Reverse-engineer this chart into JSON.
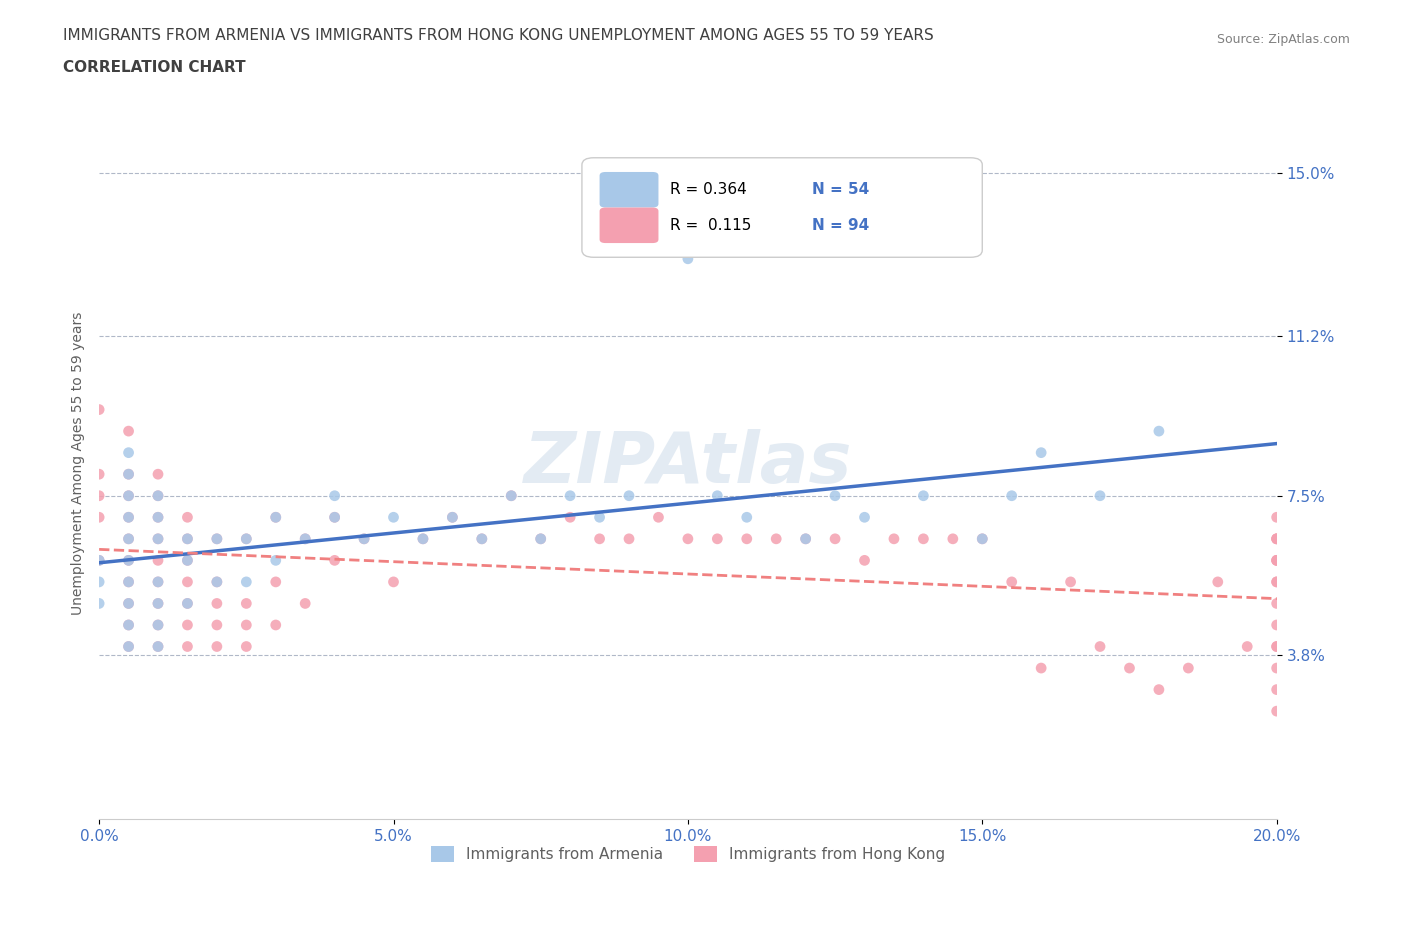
{
  "title_line1": "IMMIGRANTS FROM ARMENIA VS IMMIGRANTS FROM HONG KONG UNEMPLOYMENT AMONG AGES 55 TO 59 YEARS",
  "title_line2": "CORRELATION CHART",
  "source_text": "Source: ZipAtlas.com",
  "xlabel": "",
  "ylabel": "Unemployment Among Ages 55 to 59 years",
  "xlim": [
    0.0,
    0.2
  ],
  "ylim": [
    0.0,
    0.165
  ],
  "xticks": [
    0.0,
    0.05,
    0.1,
    0.15,
    0.2
  ],
  "xticklabels": [
    "0.0%",
    "5.0%",
    "10.0%",
    "15.0%",
    "20.0%"
  ],
  "ytick_positions": [
    0.038,
    0.075,
    0.112,
    0.15
  ],
  "ytick_labels": [
    "3.8%",
    "7.5%",
    "11.2%",
    "15.0%"
  ],
  "armenia_R": "0.364",
  "armenia_N": "54",
  "hongkong_R": "0.115",
  "hongkong_N": "94",
  "armenia_color": "#a8c8e8",
  "hongkong_color": "#f4a0b0",
  "trendline_armenia_color": "#4472c4",
  "trendline_hongkong_color": "#f08080",
  "label_color": "#4472c4",
  "title_color": "#404040",
  "watermark_color": "#c8d8e8",
  "background_color": "#ffffff",
  "armenia_scatter_x": [
    0.0,
    0.0,
    0.0,
    0.005,
    0.005,
    0.005,
    0.005,
    0.005,
    0.005,
    0.005,
    0.005,
    0.005,
    0.005,
    0.01,
    0.01,
    0.01,
    0.01,
    0.01,
    0.01,
    0.01,
    0.015,
    0.015,
    0.015,
    0.02,
    0.02,
    0.025,
    0.025,
    0.03,
    0.03,
    0.035,
    0.04,
    0.04,
    0.045,
    0.05,
    0.055,
    0.06,
    0.065,
    0.07,
    0.075,
    0.08,
    0.085,
    0.09,
    0.1,
    0.105,
    0.11,
    0.12,
    0.125,
    0.13,
    0.14,
    0.15,
    0.155,
    0.16,
    0.17,
    0.18
  ],
  "armenia_scatter_y": [
    0.05,
    0.055,
    0.06,
    0.04,
    0.045,
    0.05,
    0.055,
    0.06,
    0.065,
    0.07,
    0.075,
    0.08,
    0.085,
    0.04,
    0.045,
    0.05,
    0.055,
    0.065,
    0.07,
    0.075,
    0.05,
    0.06,
    0.065,
    0.055,
    0.065,
    0.055,
    0.065,
    0.06,
    0.07,
    0.065,
    0.07,
    0.075,
    0.065,
    0.07,
    0.065,
    0.07,
    0.065,
    0.075,
    0.065,
    0.075,
    0.07,
    0.075,
    0.13,
    0.075,
    0.07,
    0.065,
    0.075,
    0.07,
    0.075,
    0.065,
    0.075,
    0.085,
    0.075,
    0.09
  ],
  "hongkong_scatter_x": [
    0.0,
    0.0,
    0.0,
    0.0,
    0.0,
    0.005,
    0.005,
    0.005,
    0.005,
    0.005,
    0.005,
    0.005,
    0.005,
    0.005,
    0.005,
    0.01,
    0.01,
    0.01,
    0.01,
    0.01,
    0.01,
    0.01,
    0.01,
    0.01,
    0.015,
    0.015,
    0.015,
    0.015,
    0.015,
    0.015,
    0.015,
    0.02,
    0.02,
    0.02,
    0.02,
    0.02,
    0.025,
    0.025,
    0.025,
    0.025,
    0.03,
    0.03,
    0.03,
    0.035,
    0.035,
    0.04,
    0.04,
    0.045,
    0.05,
    0.055,
    0.06,
    0.065,
    0.07,
    0.075,
    0.08,
    0.085,
    0.09,
    0.095,
    0.1,
    0.105,
    0.11,
    0.115,
    0.12,
    0.125,
    0.13,
    0.135,
    0.14,
    0.145,
    0.15,
    0.155,
    0.16,
    0.165,
    0.17,
    0.175,
    0.18,
    0.185,
    0.19,
    0.195,
    0.2,
    0.2,
    0.2,
    0.2,
    0.2,
    0.2,
    0.2,
    0.2,
    0.2,
    0.2,
    0.2,
    0.2,
    0.2,
    0.2,
    0.2,
    0.2
  ],
  "hongkong_scatter_y": [
    0.06,
    0.07,
    0.075,
    0.08,
    0.095,
    0.04,
    0.045,
    0.05,
    0.055,
    0.06,
    0.065,
    0.07,
    0.075,
    0.08,
    0.09,
    0.04,
    0.045,
    0.05,
    0.055,
    0.06,
    0.065,
    0.07,
    0.075,
    0.08,
    0.04,
    0.045,
    0.05,
    0.055,
    0.06,
    0.065,
    0.07,
    0.04,
    0.045,
    0.05,
    0.055,
    0.065,
    0.04,
    0.045,
    0.05,
    0.065,
    0.045,
    0.055,
    0.07,
    0.05,
    0.065,
    0.06,
    0.07,
    0.065,
    0.055,
    0.065,
    0.07,
    0.065,
    0.075,
    0.065,
    0.07,
    0.065,
    0.065,
    0.07,
    0.065,
    0.065,
    0.065,
    0.065,
    0.065,
    0.065,
    0.06,
    0.065,
    0.065,
    0.065,
    0.065,
    0.055,
    0.035,
    0.055,
    0.04,
    0.035,
    0.03,
    0.035,
    0.055,
    0.04,
    0.06,
    0.065,
    0.035,
    0.04,
    0.045,
    0.05,
    0.055,
    0.06,
    0.065,
    0.03,
    0.025,
    0.04,
    0.055,
    0.06,
    0.065,
    0.07
  ]
}
